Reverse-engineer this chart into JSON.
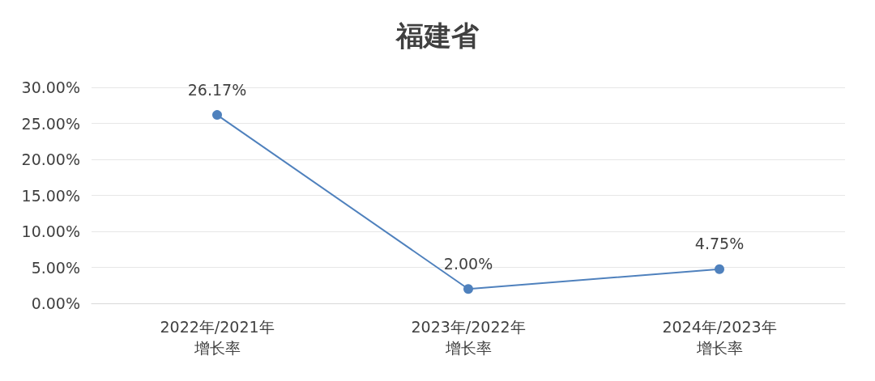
{
  "chart_data": {
    "type": "line",
    "title": "福建省",
    "categories": [
      "2022年/2021年增长率",
      "2023年/2022年增长率",
      "2024年/2023年增长率"
    ],
    "series": [
      {
        "color": "#4f81bd",
        "values": [
          26.17,
          2.0,
          4.75
        ],
        "value_labels": [
          "26.17%",
          "2.00%",
          "4.75%"
        ]
      }
    ],
    "ylim": [
      0,
      30
    ],
    "yticks": [
      {
        "value": 0,
        "label": "0.00%"
      },
      {
        "value": 5,
        "label": "5.00%"
      },
      {
        "value": 10,
        "label": "10.00%"
      },
      {
        "value": 15,
        "label": "15.00%"
      },
      {
        "value": 20,
        "label": "20.00%"
      },
      {
        "value": 25,
        "label": "25.00%"
      },
      {
        "value": 30,
        "label": "30.00%"
      }
    ],
    "grid": "y",
    "marker": "circle",
    "line_style": "solid"
  }
}
